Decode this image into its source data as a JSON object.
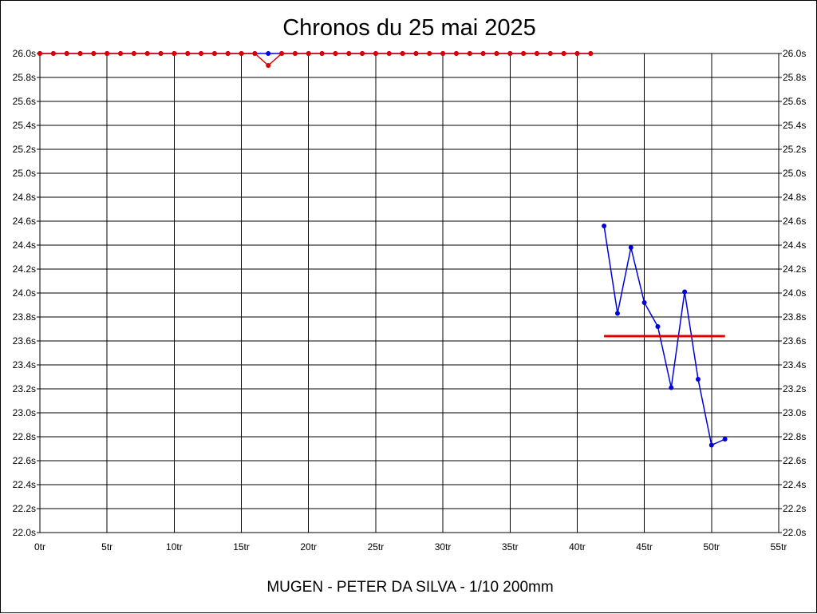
{
  "chart_data": {
    "type": "line",
    "title": "Chronos du 25 mai 2025",
    "footer": "MUGEN - PETER DA SILVA - 1/10 200mm",
    "x_unit": "tr",
    "y_unit": "s",
    "xlim": [
      0,
      55
    ],
    "ylim": [
      22.0,
      26.0
    ],
    "x_ticks": [
      0,
      5,
      10,
      15,
      20,
      25,
      30,
      35,
      40,
      45,
      50,
      55
    ],
    "x_tick_labels": [
      "0tr",
      "5tr",
      "10tr",
      "15tr",
      "20tr",
      "25tr",
      "30tr",
      "35tr",
      "40tr",
      "45tr",
      "50tr",
      "55tr"
    ],
    "y_ticks": [
      22.0,
      22.2,
      22.4,
      22.6,
      22.8,
      23.0,
      23.2,
      23.4,
      23.6,
      23.8,
      24.0,
      24.2,
      24.4,
      24.6,
      24.8,
      25.0,
      25.2,
      25.4,
      25.6,
      25.8,
      26.0
    ],
    "y_tick_labels": [
      "22.0s",
      "22.2s",
      "22.4s",
      "22.6s",
      "22.8s",
      "23.0s",
      "23.2s",
      "23.4s",
      "23.6s",
      "23.8s",
      "24.0s",
      "24.2s",
      "24.4s",
      "24.6s",
      "24.8s",
      "25.0s",
      "25.2s",
      "25.4s",
      "25.6s",
      "25.8s",
      "26.0s"
    ],
    "grid": true,
    "y_axis_both_sides": true,
    "series": [
      {
        "color": "#0000dd",
        "role": "laps",
        "x": [
          0,
          1,
          2,
          3,
          4,
          5,
          6,
          7,
          8,
          9,
          10,
          11,
          12,
          13,
          14,
          15,
          16,
          17,
          18,
          19,
          20,
          21,
          22,
          23,
          24,
          25,
          26,
          27,
          28,
          29,
          30,
          31,
          32,
          33,
          34,
          35,
          36,
          37,
          38,
          39,
          40,
          41
        ],
        "y": [
          26.0,
          26.0,
          26.0,
          26.0,
          26.0,
          26.0,
          26.0,
          26.0,
          26.0,
          26.0,
          26.0,
          26.0,
          26.0,
          26.0,
          26.0,
          26.0,
          26.0,
          26.0,
          26.0,
          26.0,
          26.0,
          26.0,
          26.0,
          26.0,
          26.0,
          26.0,
          26.0,
          26.0,
          26.0,
          26.0,
          26.0,
          26.0,
          26.0,
          26.0,
          26.0,
          26.0,
          26.0,
          26.0,
          26.0,
          26.0,
          26.0,
          26.0
        ]
      },
      {
        "color": "#dd0000",
        "role": "laps",
        "x": [
          0,
          1,
          2,
          3,
          4,
          5,
          6,
          7,
          8,
          9,
          10,
          11,
          12,
          13,
          14,
          15,
          16,
          17,
          18,
          19,
          20,
          21,
          22,
          23,
          24,
          25,
          26,
          27,
          28,
          29,
          30,
          31,
          32,
          33,
          34,
          35,
          36,
          37,
          38,
          39,
          40,
          41
        ],
        "y": [
          26.0,
          26.0,
          26.0,
          26.0,
          26.0,
          26.0,
          26.0,
          26.0,
          26.0,
          26.0,
          26.0,
          26.0,
          26.0,
          26.0,
          26.0,
          26.0,
          26.0,
          25.9,
          26.0,
          26.0,
          26.0,
          26.0,
          26.0,
          26.0,
          26.0,
          26.0,
          26.0,
          26.0,
          26.0,
          26.0,
          26.0,
          26.0,
          26.0,
          26.0,
          26.0,
          26.0,
          26.0,
          26.0,
          26.0,
          26.0,
          26.0,
          26.0
        ]
      },
      {
        "color": "#0000dd",
        "role": "laps",
        "x": [
          42,
          43,
          44,
          45,
          46,
          47,
          48,
          49,
          50,
          51
        ],
        "y": [
          24.56,
          23.83,
          24.38,
          23.92,
          23.72,
          23.21,
          24.01,
          23.28,
          22.73,
          22.78
        ]
      },
      {
        "color": "#dd0000",
        "role": "average",
        "x": [
          42,
          51
        ],
        "y": [
          23.64,
          23.64
        ]
      }
    ]
  }
}
